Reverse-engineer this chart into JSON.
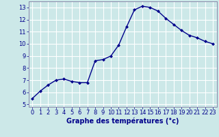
{
  "hours": [
    0,
    1,
    2,
    3,
    4,
    5,
    6,
    7,
    8,
    9,
    10,
    11,
    12,
    13,
    14,
    15,
    16,
    17,
    18,
    19,
    20,
    21,
    22,
    23
  ],
  "temps": [
    5.5,
    6.1,
    6.6,
    7.0,
    7.1,
    6.9,
    6.8,
    6.8,
    8.6,
    8.7,
    9.0,
    9.9,
    11.4,
    12.8,
    13.1,
    13.0,
    12.7,
    12.1,
    11.6,
    11.1,
    10.7,
    10.5,
    10.2,
    10.0
  ],
  "line_color": "#00008b",
  "marker": "D",
  "marker_size": 2.0,
  "bg_color": "#cce8e8",
  "grid_color": "#ffffff",
  "xlabel": "Graphe des températures (°c)",
  "xlabel_color": "#00008b",
  "xlabel_fontsize": 7,
  "tick_color": "#00008b",
  "tick_fontsize": 6,
  "ylim": [
    4.8,
    13.5
  ],
  "yticks": [
    5,
    6,
    7,
    8,
    9,
    10,
    11,
    12,
    13
  ],
  "xlim": [
    -0.5,
    23.5
  ],
  "xticks": [
    0,
    1,
    2,
    3,
    4,
    5,
    6,
    7,
    8,
    9,
    10,
    11,
    12,
    13,
    14,
    15,
    16,
    17,
    18,
    19,
    20,
    21,
    22,
    23
  ],
  "spine_color": "#8888aa",
  "linewidth": 1.0
}
